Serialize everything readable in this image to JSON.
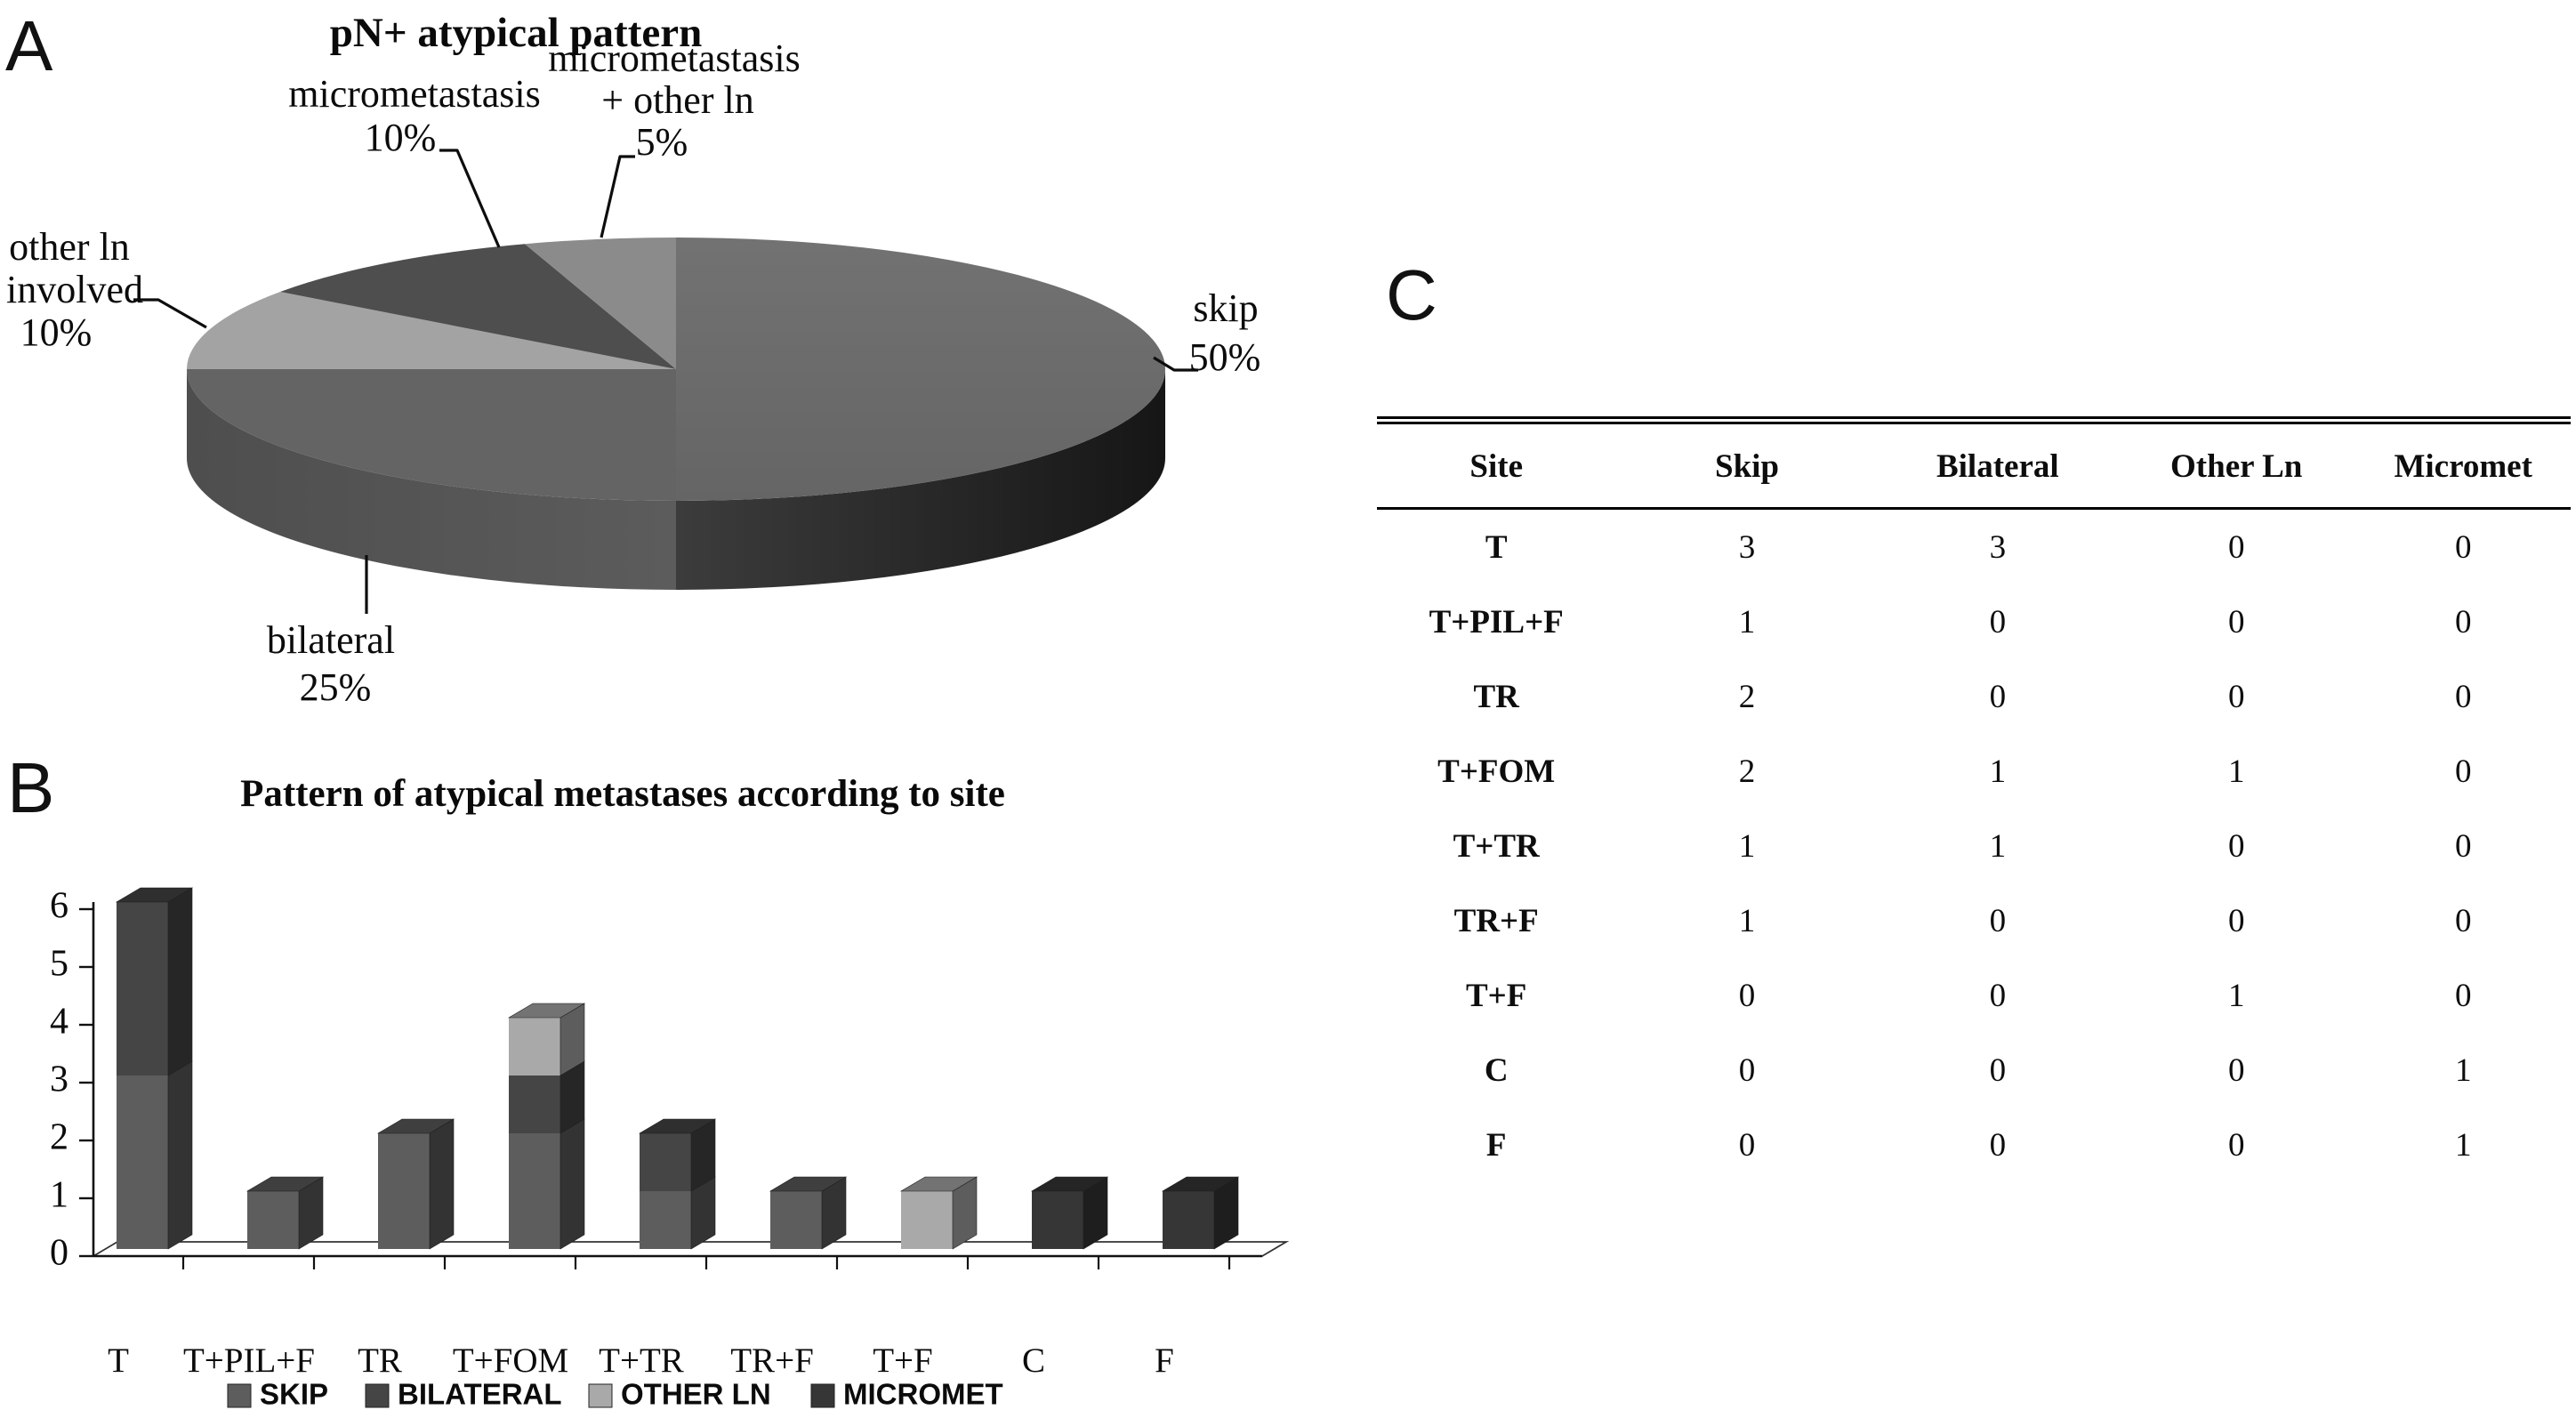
{
  "panels": {
    "a": "A",
    "b": "B",
    "c": "C"
  },
  "chart_data": [
    {
      "type": "pie",
      "title": "pN+ atypical pattern",
      "direction": "clockwise",
      "start_angle_deg": 0,
      "depth_3d": true,
      "slices": [
        {
          "label": "skip",
          "pct": 50,
          "display_lines": [
            "skip",
            "50%"
          ],
          "color": "#6b6b6b"
        },
        {
          "label": "bilateral",
          "pct": 25,
          "display_lines": [
            "bilateral",
            "25%"
          ],
          "color": "#646464"
        },
        {
          "label": "other ln involved",
          "pct": 10,
          "display_lines": [
            "other ln",
            "involved",
            "10%"
          ],
          "color": "#a3a3a3"
        },
        {
          "label": "micrometastasis",
          "pct": 10,
          "display_lines": [
            "micrometastasis",
            "10%"
          ],
          "color": "#4e4e4e"
        },
        {
          "label": "micrometastasis + other ln",
          "pct": 5,
          "display_lines": [
            "micrometastasis",
            "+ other ln",
            "5%"
          ],
          "color": "#8b8b8b"
        }
      ]
    },
    {
      "type": "bar",
      "stacked": true,
      "title": "Pattern of atypical metastases according to site",
      "categories": [
        "T",
        "T+PIL+F",
        "TR",
        "T+FOM",
        "T+TR",
        "TR+F",
        "T+F",
        "C",
        "F"
      ],
      "series": [
        {
          "name": "SKIP",
          "color": "#5d5d5d",
          "values": [
            3,
            1,
            2,
            2,
            1,
            1,
            0,
            0,
            0
          ]
        },
        {
          "name": "BILATERAL",
          "color": "#454545",
          "values": [
            3,
            0,
            0,
            1,
            1,
            0,
            0,
            0,
            0
          ]
        },
        {
          "name": "OTHER LN",
          "color": "#a9a9a9",
          "values": [
            0,
            0,
            0,
            1,
            0,
            0,
            1,
            0,
            0
          ]
        },
        {
          "name": "MICROMET",
          "color": "#363636",
          "values": [
            0,
            0,
            0,
            0,
            0,
            0,
            0,
            1,
            1
          ]
        }
      ],
      "xlabel": "",
      "ylabel": "",
      "ylim": [
        0,
        6
      ],
      "yticks": [
        0,
        1,
        2,
        3,
        4,
        5,
        6
      ],
      "legend_position": "bottom",
      "grid": false
    }
  ],
  "table": {
    "headers": [
      "Site",
      "Skip",
      "Bilateral",
      "Other Ln",
      "Micromet"
    ],
    "rows": [
      [
        "T",
        "3",
        "3",
        "0",
        "0"
      ],
      [
        "T+PIL+F",
        "1",
        "0",
        "0",
        "0"
      ],
      [
        "TR",
        "2",
        "0",
        "0",
        "0"
      ],
      [
        "T+FOM",
        "2",
        "1",
        "1",
        "0"
      ],
      [
        "T+TR",
        "1",
        "1",
        "0",
        "0"
      ],
      [
        "TR+F",
        "1",
        "0",
        "0",
        "0"
      ],
      [
        "T+F",
        "0",
        "0",
        "1",
        "0"
      ],
      [
        "C",
        "0",
        "0",
        "0",
        "1"
      ],
      [
        "F",
        "0",
        "0",
        "0",
        "1"
      ]
    ]
  }
}
